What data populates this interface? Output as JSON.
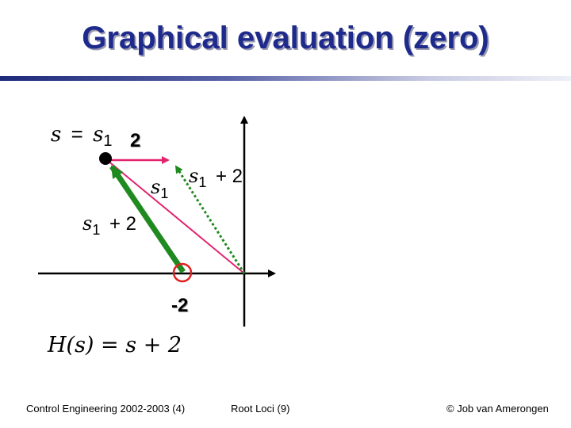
{
  "title": "Graphical evaluation (zero)",
  "labels": {
    "s_eq_s1": {
      "lhs": "s",
      "eq": "=",
      "rhs": "s",
      "sub": "1"
    },
    "top_two": "2",
    "s1_vector": {
      "base": "s",
      "sub": "1"
    },
    "s1_plus2_right": {
      "base": "s",
      "sub": "1",
      "rest": "+ 2"
    },
    "s1_plus2_left": {
      "base": "s",
      "sub": "1",
      "rest": "+ 2"
    },
    "zero_value": "-2",
    "transfer_function": "H(s) = s + 2"
  },
  "colors": {
    "title": "#1e2a8c",
    "pink_vector": "#e2246e",
    "green_vector": "#1f8a1f",
    "dotted_vector": "#1f8a1f",
    "zero_marker": "#e02020",
    "axes": "#000000"
  },
  "footer": {
    "left": "Control Engineering 2002-2003  (4)",
    "center": "Root Loci  (9)",
    "right": "© Job van Amerongen"
  }
}
